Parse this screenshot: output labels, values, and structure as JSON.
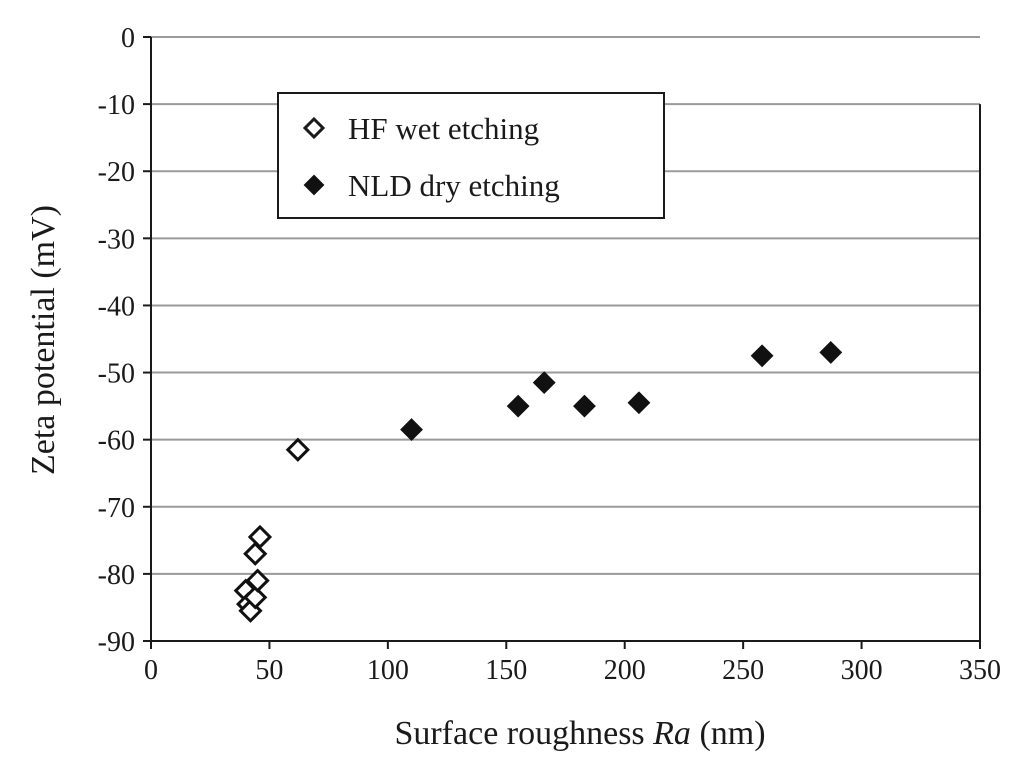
{
  "chart_data": {
    "type": "scatter",
    "title": "",
    "xlabel_main": "Surface roughness ",
    "xlabel_italic": "Ra",
    "xlabel_unit": " (nm)",
    "ylabel": "Zeta potential (mV)",
    "xlim": [
      0,
      350
    ],
    "ylim": [
      -90,
      0
    ],
    "x_ticks": [
      0,
      50,
      100,
      150,
      200,
      250,
      300,
      350
    ],
    "y_ticks": [
      0,
      -10,
      -20,
      -30,
      -40,
      -50,
      -60,
      -70,
      -80,
      -90
    ],
    "grid": "horizontal",
    "legend_position": "top-left",
    "series": [
      {
        "name": "HF wet etching",
        "marker": "open-diamond",
        "points": [
          {
            "x": 40,
            "y": -82.5
          },
          {
            "x": 41,
            "y": -84.5
          },
          {
            "x": 42,
            "y": -85.5
          },
          {
            "x": 44,
            "y": -83.5
          },
          {
            "x": 45,
            "y": -81
          },
          {
            "x": 44,
            "y": -77
          },
          {
            "x": 46,
            "y": -74.5
          },
          {
            "x": 62,
            "y": -61.5
          }
        ]
      },
      {
        "name": "NLD dry etching",
        "marker": "filled-diamond",
        "points": [
          {
            "x": 110,
            "y": -58.5
          },
          {
            "x": 155,
            "y": -55
          },
          {
            "x": 166,
            "y": -51.5
          },
          {
            "x": 183,
            "y": -55
          },
          {
            "x": 206,
            "y": -54.5
          },
          {
            "x": 258,
            "y": -47.5
          },
          {
            "x": 287,
            "y": -47
          }
        ]
      }
    ]
  }
}
